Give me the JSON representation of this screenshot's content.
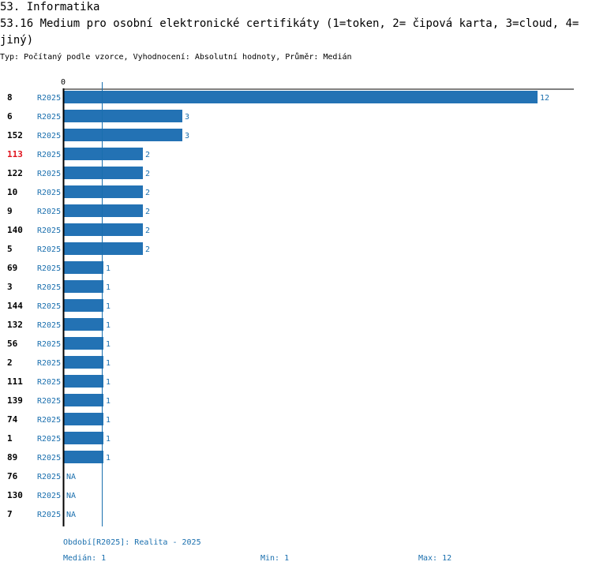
{
  "header": {
    "section": "53. Informatika",
    "question": "53.16 Medium pro osobní elektronické certifikáty (1=token, 2= čipová karta, 3=cloud, 4=jiný)",
    "meta": "Typ: Počítaný podle vzorce, Vyhodnocení: Absolutní hodnoty, Průměr: Medián"
  },
  "colors": {
    "bar": "#2372b4",
    "label": "#1a6fae",
    "highlight": "#e0141e",
    "axis": "#000000"
  },
  "chart_data": {
    "type": "bar",
    "orientation": "horizontal",
    "axis_zero_label": "0",
    "xlim": [
      0,
      12
    ],
    "series_label": "R2025",
    "categories": [
      "8",
      "6",
      "152",
      "113",
      "122",
      "10",
      "9",
      "140",
      "5",
      "69",
      "3",
      "144",
      "132",
      "56",
      "2",
      "111",
      "139",
      "74",
      "1",
      "89",
      "76",
      "130",
      "7"
    ],
    "values": [
      12,
      3,
      3,
      2,
      2,
      2,
      2,
      2,
      2,
      1,
      1,
      1,
      1,
      1,
      1,
      1,
      1,
      1,
      1,
      1,
      null,
      null,
      null
    ],
    "value_labels": [
      "12",
      "3",
      "3",
      "2",
      "2",
      "2",
      "2",
      "2",
      "2",
      "1",
      "1",
      "1",
      "1",
      "1",
      "1",
      "1",
      "1",
      "1",
      "1",
      "1",
      "NA",
      "NA",
      "NA"
    ],
    "highlighted_category": "113",
    "median": 1
  },
  "footer": {
    "period": "Období[R2025]: Realita - 2025",
    "median": "Medián: 1",
    "min": "Min: 1",
    "max": "Max: 12"
  }
}
